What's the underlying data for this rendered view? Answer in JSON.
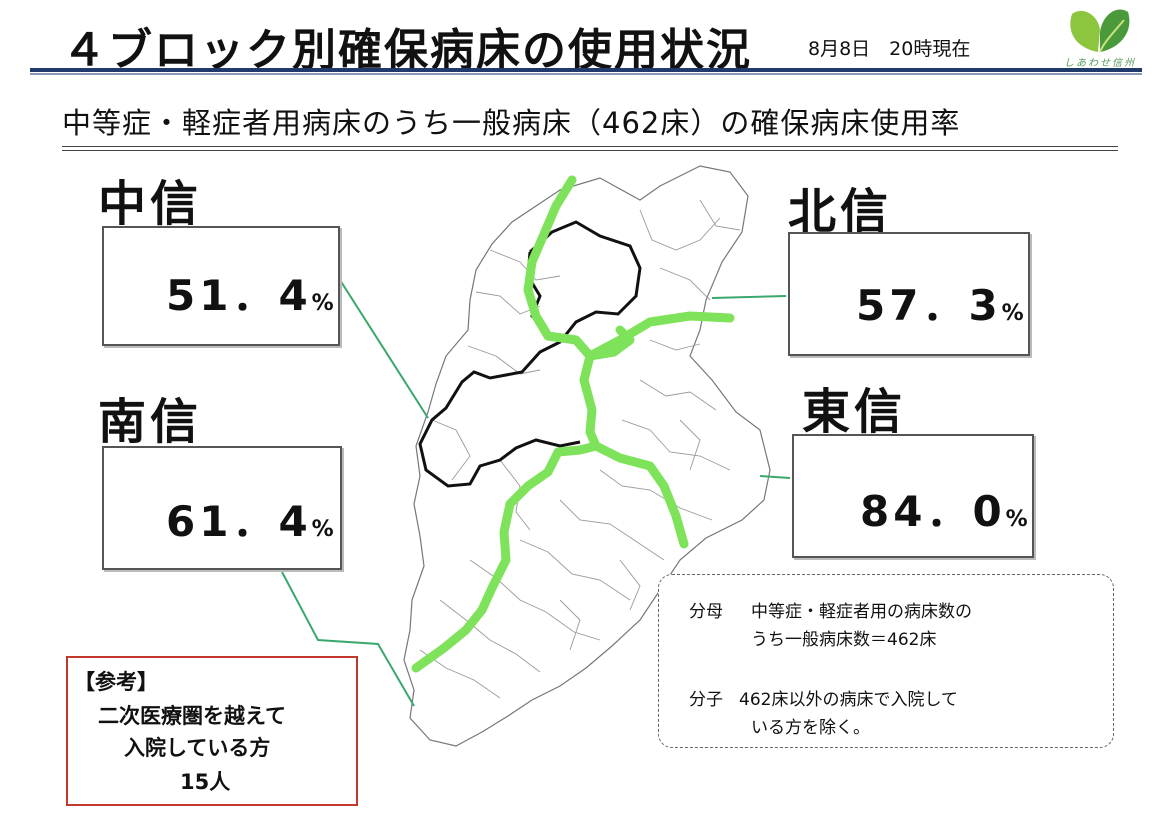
{
  "header": {
    "title": "４ブロック別確保病床の使用状況",
    "date": "8月8日　20時現在",
    "logo_caption": "しあわせ信州"
  },
  "subtitle": "中等症・軽症者用病床のうち一般病床（462床）の確保病床使用率",
  "regions": {
    "chushin": {
      "label": "中信",
      "value": "51．4",
      "unit": "%"
    },
    "hokushin": {
      "label": "北信",
      "value": "57．3",
      "unit": "%"
    },
    "nanshin": {
      "label": "南信",
      "value": "61．4",
      "unit": "%"
    },
    "toshin": {
      "label": "東信",
      "value": "84．0",
      "unit": "%"
    }
  },
  "notes": {
    "denominator_label": "分母",
    "denominator_line1": "中等症・軽症者用の病床数の",
    "denominator_line2": "うち一般病床数＝462床",
    "numerator_label": "分子",
    "numerator_line1": "462床以外の病床で入院して",
    "numerator_line2": "いる方を除く。"
  },
  "reference": {
    "heading": "【参考】",
    "line1": "二次医療圏を越えて",
    "line2": "入院している方",
    "line3": "15人"
  },
  "colors": {
    "header_rule": "#1f3a6b",
    "boundary_green": "#7ee35a",
    "leader_line": "#3aa86b",
    "reference_border": "#c0392b"
  }
}
